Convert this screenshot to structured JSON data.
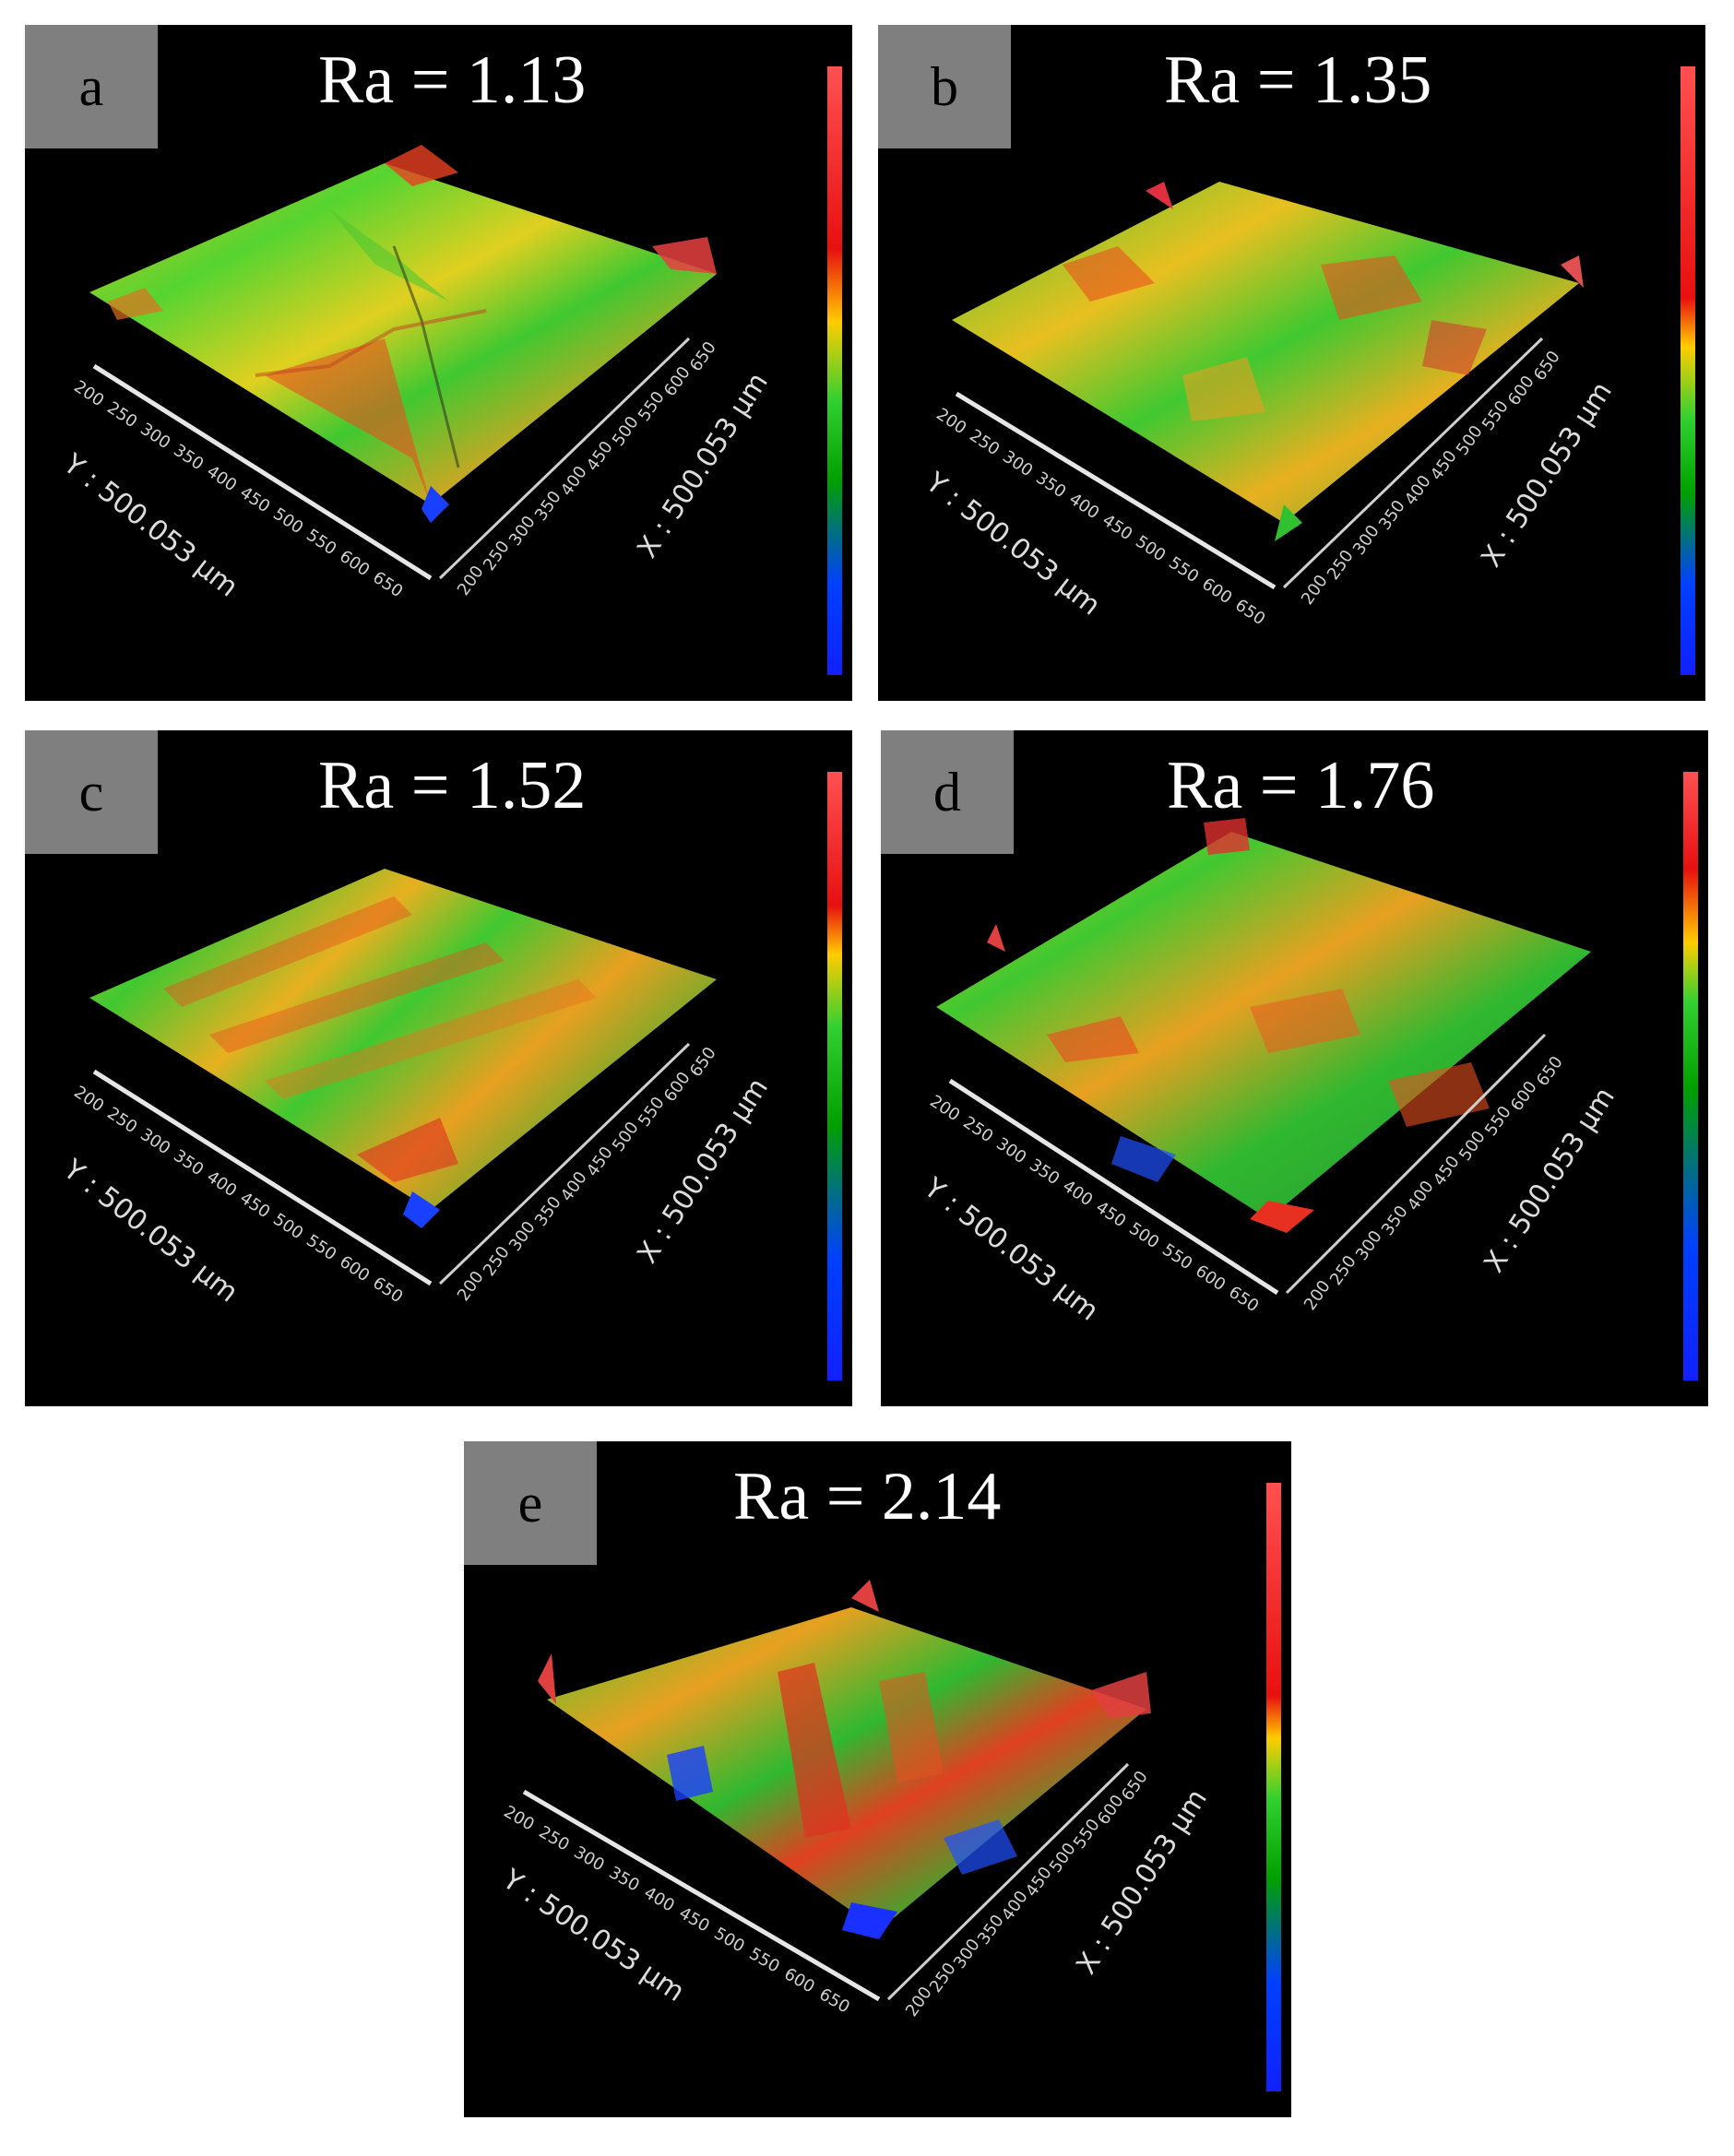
{
  "panels": [
    {
      "id": "a",
      "letter": "a",
      "ra": "Ra = 1.13"
    },
    {
      "id": "b",
      "letter": "b",
      "ra": "Ra = 1.35"
    },
    {
      "id": "c",
      "letter": "c",
      "ra": "Ra = 1.52"
    },
    {
      "id": "d",
      "letter": "d",
      "ra": "Ra = 1.76"
    },
    {
      "id": "e",
      "letter": "e",
      "ra": "Ra = 2.14"
    }
  ],
  "axes": {
    "y_title": "Y : 500.053 µm",
    "x_title": "X : 500.053 µm",
    "y_ticks": [
      "200",
      "250",
      "300",
      "350",
      "400",
      "450",
      "500",
      "550",
      "600",
      "650"
    ],
    "x_ticks": [
      "200",
      "250",
      "300",
      "350",
      "400",
      "450",
      "500",
      "550",
      "600",
      "650"
    ]
  },
  "colorscale": [
    "#ff4040",
    "#e8101a",
    "#ffcc00",
    "#2fd12f",
    "#00b000",
    "#0050ff",
    "#1020ff"
  ]
}
